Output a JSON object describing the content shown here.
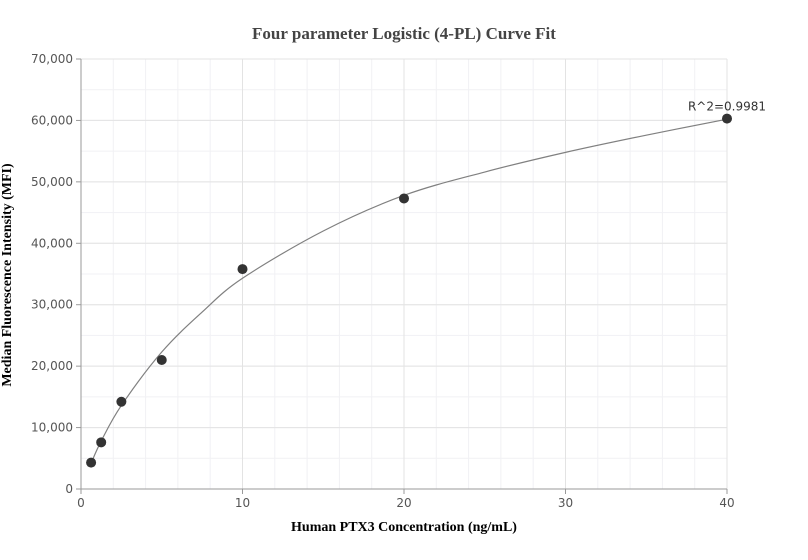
{
  "chart_data": {
    "type": "scatter",
    "title": "Four parameter Logistic (4-PL) Curve Fit",
    "xlabel": "Human PTX3 Concentration (ng/mL)",
    "ylabel": "Median Fluorescence Intensity (MFI)",
    "xlim": [
      0,
      40
    ],
    "ylim": [
      0,
      70000
    ],
    "xticks": [
      0,
      10,
      20,
      30,
      40
    ],
    "yticks": [
      0,
      10000,
      20000,
      30000,
      40000,
      50000,
      60000,
      70000
    ],
    "xtick_labels": [
      "0",
      "10",
      "20",
      "30",
      "40"
    ],
    "ytick_labels": [
      "0",
      "10,000",
      "20,000",
      "30,000",
      "40,000",
      "50,000",
      "60,000",
      "70,000"
    ],
    "grid": true,
    "series": [
      {
        "points": [
          {
            "x": 0.625,
            "y": 4300
          },
          {
            "x": 1.25,
            "y": 7600
          },
          {
            "x": 2.5,
            "y": 14200
          },
          {
            "x": 5,
            "y": 21000
          },
          {
            "x": 10,
            "y": 35800
          },
          {
            "x": 20,
            "y": 47300
          },
          {
            "x": 40,
            "y": 60300
          }
        ],
        "color": "#333333"
      }
    ],
    "fit_curve": {
      "color": "#808080",
      "points": [
        {
          "x": 0.625,
          "y": 4200
        },
        {
          "x": 1.25,
          "y": 7800
        },
        {
          "x": 2.5,
          "y": 13600
        },
        {
          "x": 5,
          "y": 22300
        },
        {
          "x": 7.5,
          "y": 28800
        },
        {
          "x": 10,
          "y": 34300
        },
        {
          "x": 15,
          "y": 42000
        },
        {
          "x": 20,
          "y": 47800
        },
        {
          "x": 25,
          "y": 51600
        },
        {
          "x": 30,
          "y": 54800
        },
        {
          "x": 35,
          "y": 57600
        },
        {
          "x": 40,
          "y": 60200
        }
      ]
    },
    "annotations": [
      {
        "text": "R^2=0.9981",
        "x": 40,
        "y": 60300
      }
    ]
  }
}
